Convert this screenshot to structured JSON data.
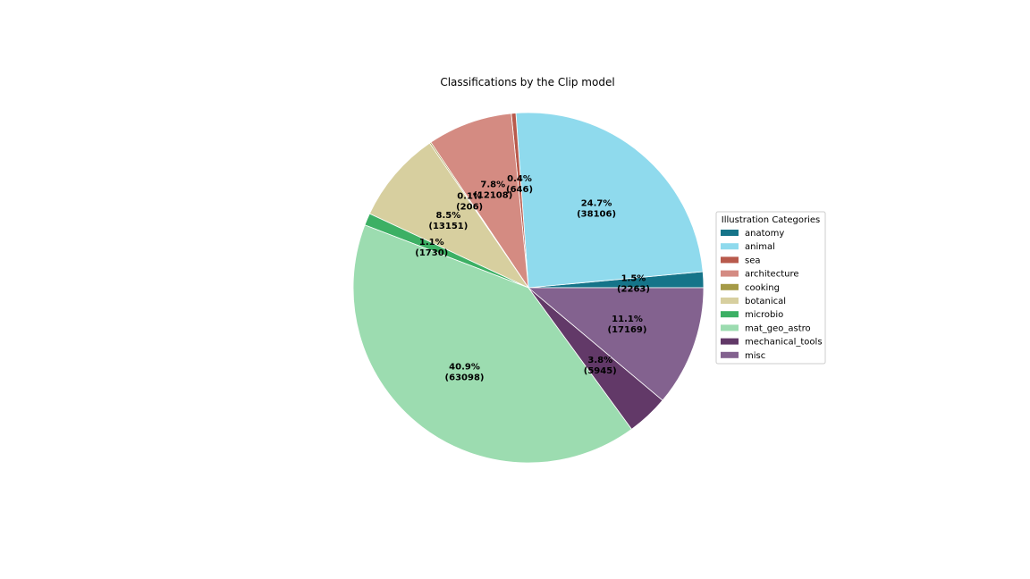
{
  "chart_data": {
    "type": "pie",
    "title": "Classifications by the Clip model",
    "legend": {
      "title": "Illustration Categories",
      "placement": "center-right"
    },
    "slices": [
      {
        "name": "anatomy",
        "value": 2263,
        "percent_label": "1.5%",
        "count_label": "(2263)",
        "color": "#157489"
      },
      {
        "name": "animal",
        "value": 38106,
        "percent_label": "24.7%",
        "count_label": "(38106)",
        "color": "#8fdaed"
      },
      {
        "name": "sea",
        "value": 646,
        "percent_label": "0.4%",
        "count_label": "(646)",
        "color": "#b85a4c"
      },
      {
        "name": "architecture",
        "value": 12108,
        "percent_label": "7.8%",
        "count_label": "(12108)",
        "color": "#d48b82"
      },
      {
        "name": "cooking",
        "value": 206,
        "percent_label": "0.1%",
        "count_label": "(206)",
        "color": "#a59a47"
      },
      {
        "name": "botanical",
        "value": 13151,
        "percent_label": "8.5%",
        "count_label": "(13151)",
        "color": "#d7cf9f"
      },
      {
        "name": "microbio",
        "value": 1730,
        "percent_label": "1.1%",
        "count_label": "(1730)",
        "color": "#3cb064"
      },
      {
        "name": "mat_geo_astro",
        "value": 63098,
        "percent_label": "40.9%",
        "count_label": "(63098)",
        "color": "#9cdcb0"
      },
      {
        "name": "mechanical_tools",
        "value": 5945,
        "percent_label": "3.8%",
        "count_label": "(5945)",
        "color": "#623968"
      },
      {
        "name": "misc",
        "value": 17169,
        "percent_label": "11.1%",
        "count_label": "(17169)",
        "color": "#83628f"
      }
    ]
  }
}
